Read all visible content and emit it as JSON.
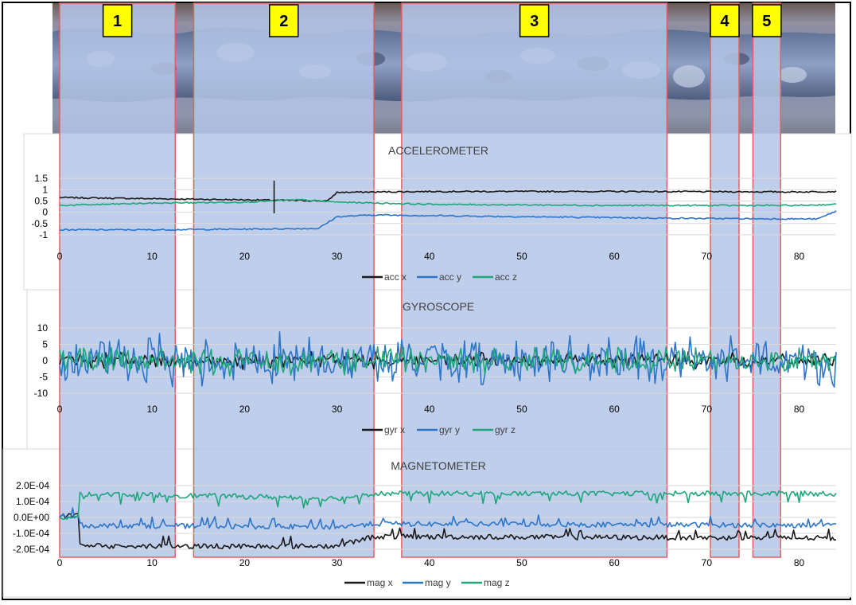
{
  "colors": {
    "black_series": "#1a1a1a",
    "blue_series": "#2e75c8",
    "green_series": "#1ea67a",
    "zone_overlay": "#b4c6e7",
    "zone_border": "#e06060",
    "label_fill": "#ffff00"
  },
  "zones": [
    {
      "label": "1",
      "x_start": 0,
      "x_end": 12.5
    },
    {
      "label": "2",
      "x_start": 14.5,
      "x_end": 34
    },
    {
      "label": "3",
      "x_start": 37,
      "x_end": 65.7
    },
    {
      "label": "4",
      "x_start": 70.4,
      "x_end": 73.5
    },
    {
      "label": "5",
      "x_start": 75,
      "x_end": 78
    }
  ],
  "chart_data": [
    {
      "type": "line",
      "title": "ACCELEROMETER",
      "xlim": [
        0,
        84
      ],
      "ylim": [
        -1.25,
        1.75
      ],
      "x_ticks": [
        "0",
        "10",
        "20",
        "30",
        "40",
        "50",
        "60",
        "70",
        "80"
      ],
      "y_ticks": [
        "1.5",
        "1",
        "0.5",
        "0",
        "-0.5",
        "-1"
      ],
      "y_tick_values": [
        1.5,
        1,
        0.5,
        0,
        -0.5,
        -1
      ],
      "series": [
        {
          "name": "acc x",
          "color": "black",
          "x": [
            0,
            10,
            20,
            29,
            30,
            40,
            60,
            80,
            84
          ],
          "y": [
            0.65,
            0.6,
            0.55,
            0.5,
            0.88,
            0.92,
            0.92,
            0.9,
            0.92
          ]
        },
        {
          "name": "acc y",
          "color": "blue",
          "x": [
            0,
            10,
            20,
            28,
            30,
            34,
            50,
            70,
            82,
            84
          ],
          "y": [
            -0.78,
            -0.78,
            -0.75,
            -0.72,
            -0.2,
            -0.12,
            -0.2,
            -0.28,
            -0.3,
            0.05
          ]
        },
        {
          "name": "acc z",
          "color": "green",
          "x": [
            0,
            10,
            20,
            26,
            30,
            40,
            60,
            80,
            84
          ],
          "y": [
            0.3,
            0.4,
            0.45,
            0.55,
            0.45,
            0.35,
            0.3,
            0.3,
            0.35
          ]
        }
      ]
    },
    {
      "type": "line",
      "title": "GYROSCOPE",
      "xlim": [
        0,
        84
      ],
      "ylim": [
        -10,
        10
      ],
      "x_ticks": [
        "0",
        "10",
        "20",
        "30",
        "40",
        "50",
        "60",
        "70",
        "80"
      ],
      "y_ticks": [
        "10",
        "5",
        "0",
        "-5",
        "-10"
      ],
      "y_tick_values": [
        10,
        5,
        0,
        -5,
        -10
      ],
      "series": [
        {
          "name": "gyr x",
          "color": "black",
          "amplitude": 3
        },
        {
          "name": "gyr y",
          "color": "blue",
          "amplitude": 9
        },
        {
          "name": "gyr z",
          "color": "green",
          "amplitude": 5
        }
      ]
    },
    {
      "type": "line",
      "title": "MAGNETOMETER",
      "xlim": [
        0,
        84
      ],
      "ylim": [
        -0.0002,
        0.0002
      ],
      "x_ticks": [
        "0",
        "10",
        "20",
        "30",
        "40",
        "50",
        "60",
        "70",
        "80"
      ],
      "y_ticks": [
        "2.0E-04",
        "1.0E-04",
        "0.0E+00",
        "-1.0E-04",
        "-2.0E-04"
      ],
      "y_tick_values": [
        0.0002,
        0.0001,
        0,
        -0.0001,
        -0.0002
      ],
      "series": [
        {
          "name": "mag x",
          "color": "black",
          "x": [
            0,
            2,
            2.2,
            30,
            34,
            84
          ],
          "y": [
            1e-05,
            1e-05,
            -0.00018,
            -0.00018,
            -0.00012,
            -0.00013
          ]
        },
        {
          "name": "mag y",
          "color": "blue",
          "x": [
            0,
            2,
            2.2,
            30,
            34,
            84
          ],
          "y": [
            1e-05,
            1e-05,
            -5e-05,
            -6e-05,
            -4e-05,
            -5e-05
          ]
        },
        {
          "name": "mag z",
          "color": "green",
          "x": [
            0,
            2,
            2.2,
            30,
            34,
            84
          ],
          "y": [
            0,
            0,
            0.00015,
            0.00012,
            0.00015,
            0.00015
          ]
        }
      ]
    }
  ]
}
